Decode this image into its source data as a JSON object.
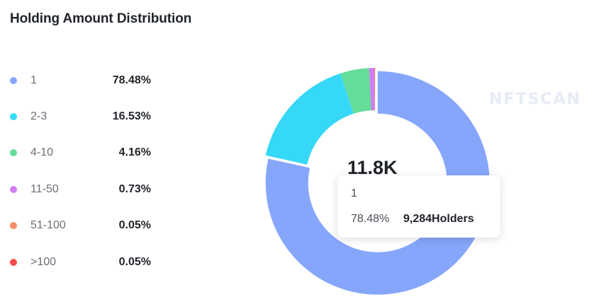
{
  "title": "Holding Amount Distribution",
  "watermark": "NFTSCAN",
  "center_value": "11.8K",
  "tooltip": {
    "label": "1",
    "percent": "78.48%",
    "holders": "9,284Holders"
  },
  "colors": {
    "slice_1": "#86a6fb",
    "slice_2_3": "#36d8f7",
    "slice_4_10": "#64dc9a",
    "slice_11_50": "#cf7df3",
    "slice_51_100": "#f78e6a",
    "slice_gt100": "#f24b4b"
  },
  "chart_data": {
    "type": "pie",
    "variant": "donut",
    "title": "Holding Amount Distribution",
    "center_label": "11.8K",
    "highlighted": "1",
    "slices": [
      {
        "label": "1",
        "value": 78.48,
        "display": "78.48%",
        "color": "#86a6fb"
      },
      {
        "label": "2-3",
        "value": 16.53,
        "display": "16.53%",
        "color": "#36d8f7"
      },
      {
        "label": "4-10",
        "value": 4.16,
        "display": "4.16%",
        "color": "#64dc9a"
      },
      {
        "label": "11-50",
        "value": 0.73,
        "display": "0.73%",
        "color": "#cf7df3"
      },
      {
        "label": "51-100",
        "value": 0.05,
        "display": "0.05%",
        "color": "#f78e6a"
      },
      {
        "label": ">100",
        "value": 0.05,
        "display": "0.05%",
        "color": "#f24b4b"
      }
    ]
  }
}
